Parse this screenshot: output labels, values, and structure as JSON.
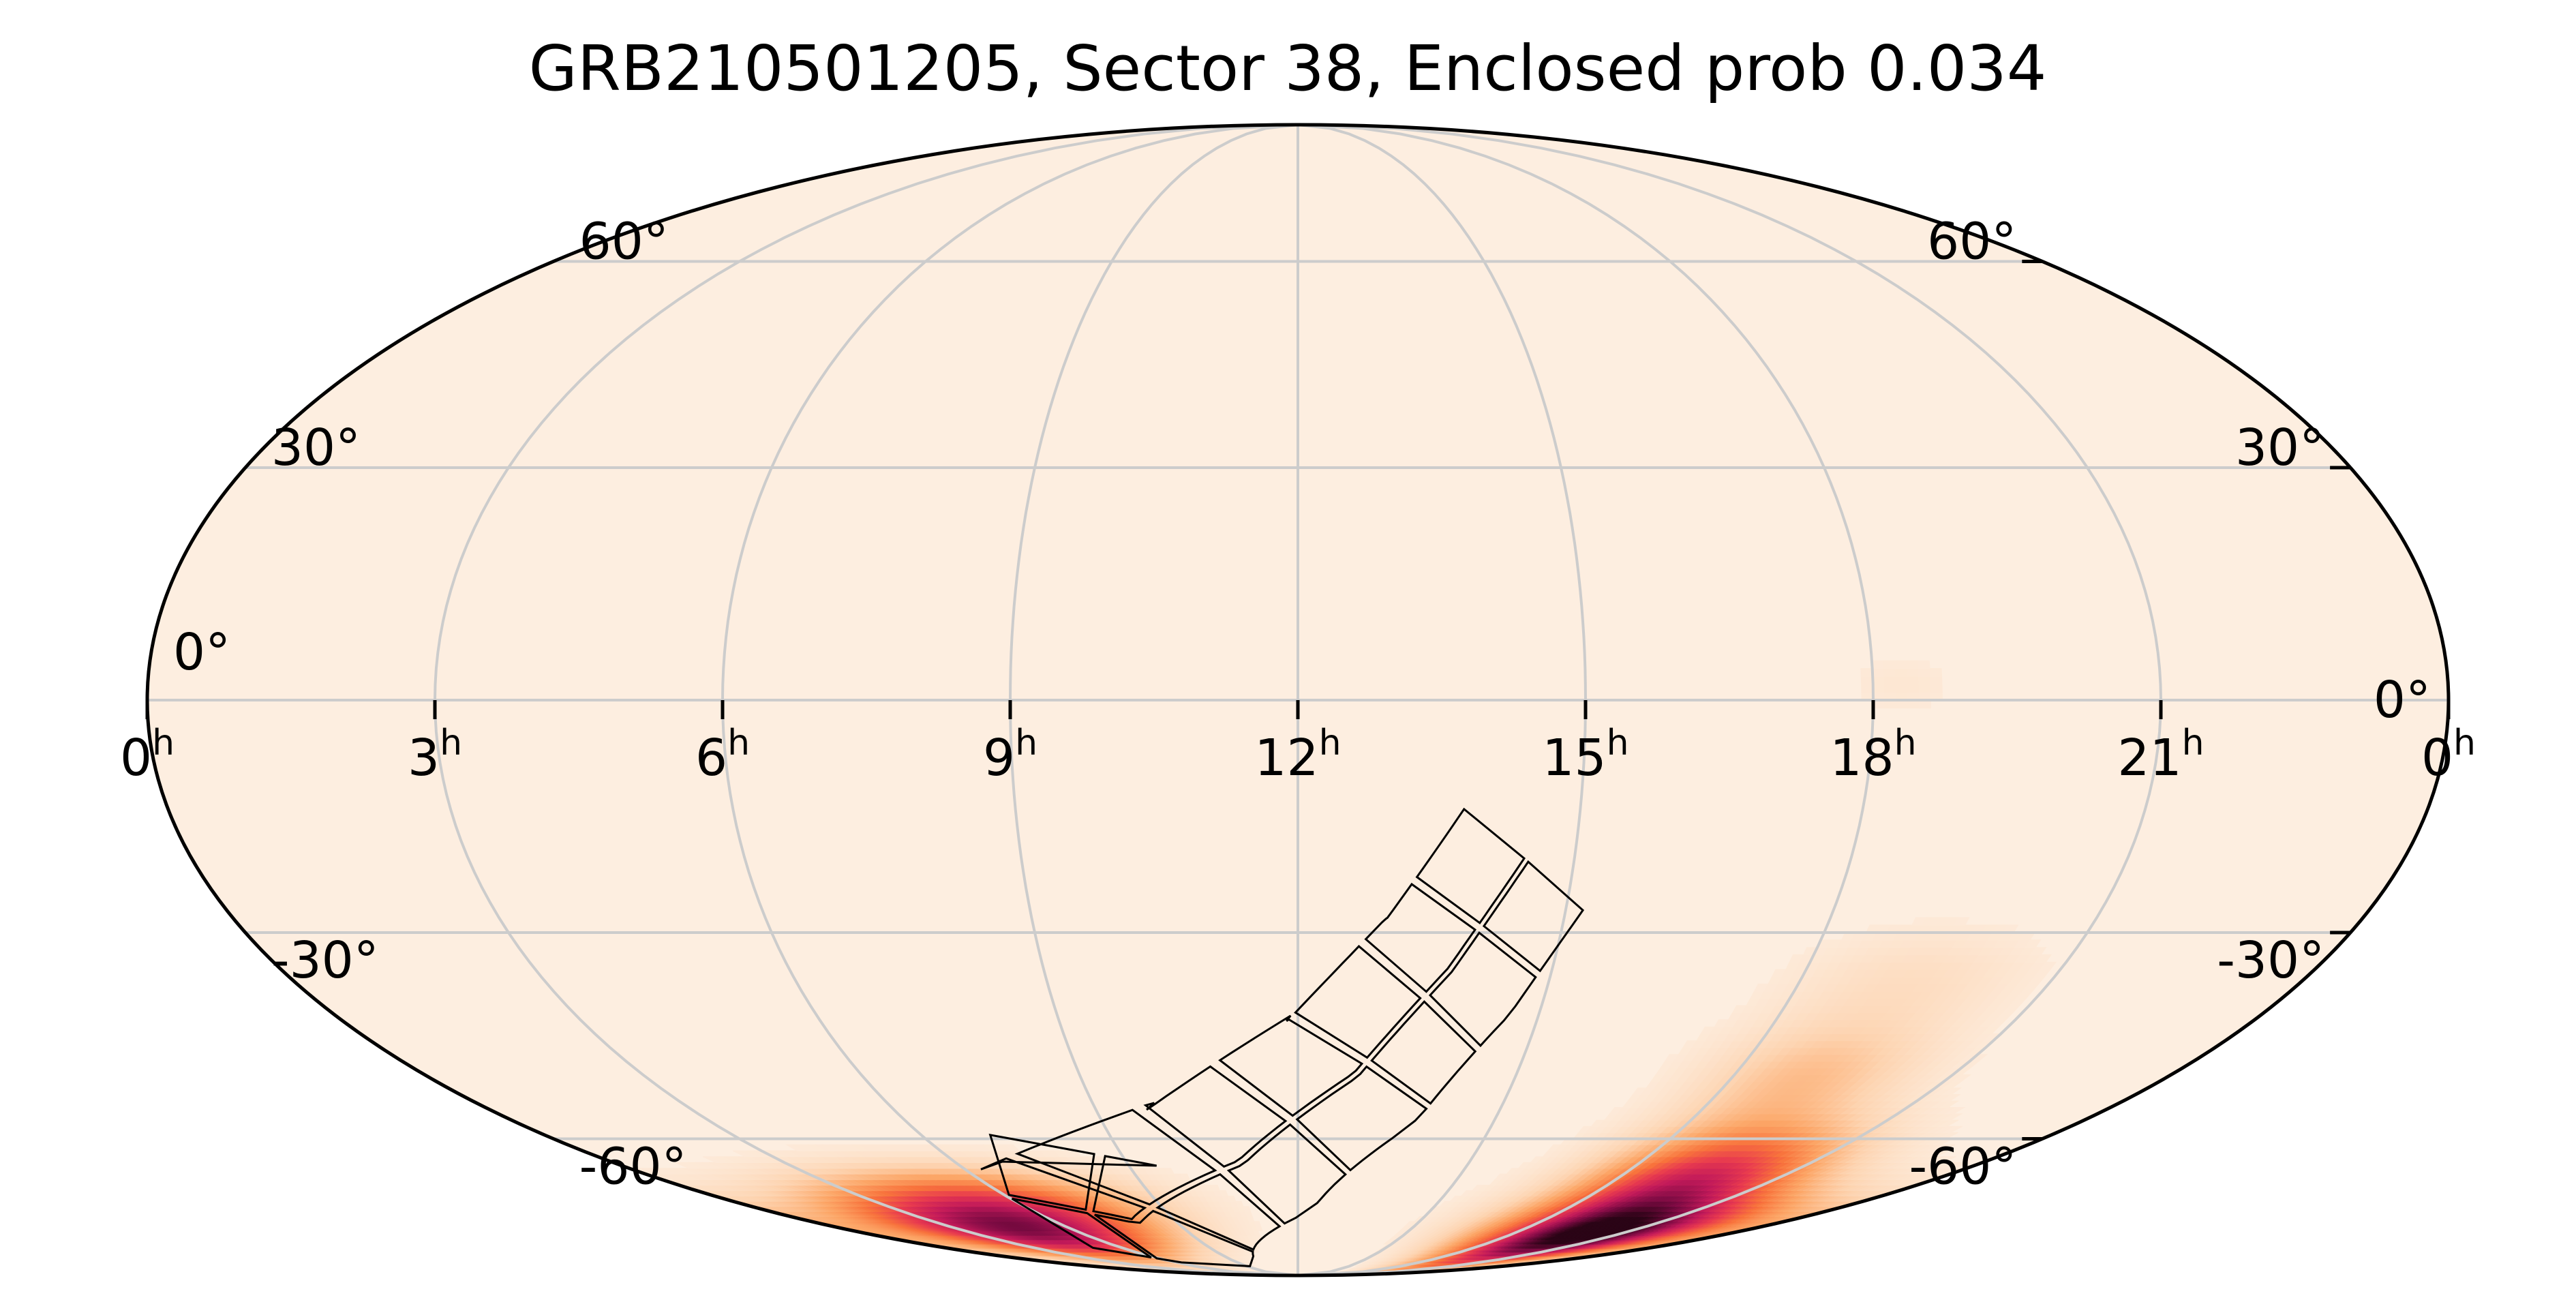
{
  "chart_data": {
    "type": "heatmap",
    "projection": "mollweide",
    "title": "GRB210501205, Sector 38, Enclosed prob 0.034",
    "grid": true,
    "colormap": [
      "#fdeee0",
      "#fdd4b1",
      "#fca667",
      "#f8733c",
      "#e83a4f",
      "#c21a5a",
      "#7d0b43",
      "#2b0416"
    ],
    "colors": {
      "background": "#fdeee0",
      "grid": "#cccccc",
      "outline": "#000000",
      "footprint": "#000000"
    },
    "ra_ticks": [
      {
        "ra": 24,
        "label": "0",
        "sup": "h"
      },
      {
        "ra": 21,
        "label": "21",
        "sup": "h"
      },
      {
        "ra": 18,
        "label": "18",
        "sup": "h"
      },
      {
        "ra": 15,
        "label": "15",
        "sup": "h"
      },
      {
        "ra": 12,
        "label": "12",
        "sup": "h"
      },
      {
        "ra": 9,
        "label": "9",
        "sup": "h"
      },
      {
        "ra": 6,
        "label": "6",
        "sup": "h"
      },
      {
        "ra": 3,
        "label": "3",
        "sup": "h"
      },
      {
        "ra": 0,
        "label": "0",
        "sup": "h"
      }
    ],
    "dec_ticks": [
      {
        "dec": 60,
        "label": "60°"
      },
      {
        "dec": 30,
        "label": "30°"
      },
      {
        "dec": 0,
        "label": "0°"
      },
      {
        "dec": -30,
        "label": "-30°"
      },
      {
        "dec": -60,
        "label": "-60°"
      }
    ],
    "probability_regions": [
      {
        "ra": 20.2,
        "dec": -78,
        "sigma_ra": 2.0,
        "sigma_dec": 6,
        "weight": 1.0
      },
      {
        "ra": 19.4,
        "dec": -66,
        "sigma_ra": 1.3,
        "sigma_dec": 6,
        "weight": 0.55
      },
      {
        "ra": 19.0,
        "dec": -50,
        "sigma_ra": 1.0,
        "sigma_dec": 6,
        "weight": 0.2
      },
      {
        "ra": 19.3,
        "dec": -36,
        "sigma_ra": 1.0,
        "sigma_dec": 5,
        "weight": 0.08
      },
      {
        "ra": 18.3,
        "dec": 2,
        "sigma_ra": 0.5,
        "sigma_dec": 3,
        "weight": 0.04
      },
      {
        "ra": 4.6,
        "dec": -77,
        "sigma_ra": 2.4,
        "sigma_dec": 5,
        "weight": 0.8
      },
      {
        "ra": 5.6,
        "dec": -70,
        "sigma_ra": 2.0,
        "sigma_dec": 4,
        "weight": 0.3
      }
    ],
    "sector_footprint": {
      "sector": 38,
      "cameras": 4,
      "ccds_per_camera": 4,
      "strip_path": [
        {
          "ra": 14.5,
          "dec": -20
        },
        {
          "ra": 13.8,
          "dec": -35
        },
        {
          "ra": 12.8,
          "dec": -50
        },
        {
          "ra": 11.0,
          "dec": -64
        },
        {
          "ra": 8.0,
          "dec": -75
        },
        {
          "ra": 6.0,
          "dec": -70
        }
      ]
    }
  }
}
